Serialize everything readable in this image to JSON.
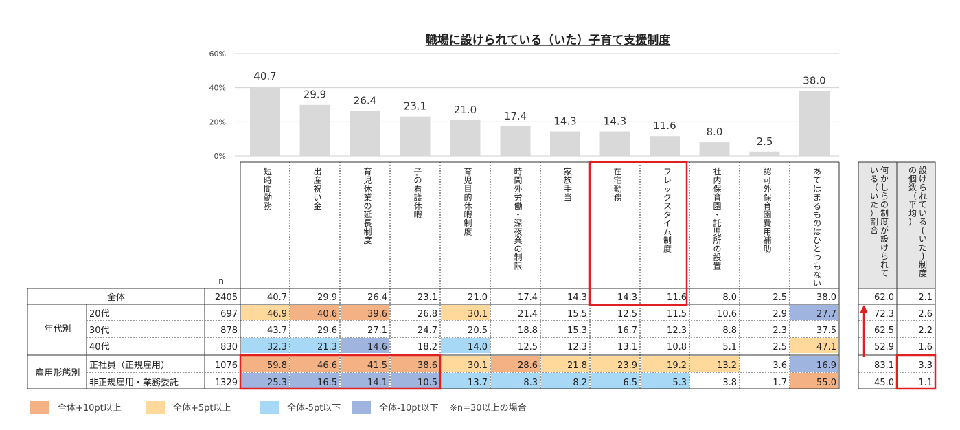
{
  "colors": {
    "bar": "#d9d9d9",
    "grid": "#d0d0d0",
    "hi10": "#f4b183",
    "hi5": "#ffd89b",
    "lo5": "#a7d8f5",
    "lo10": "#9fb4de",
    "frame": "#e02020",
    "sideHeader": "#e6e6e6"
  },
  "chart_data": {
    "type": "bar",
    "title": "職場に設けられている（いた）子育て支援制度",
    "yticks": [
      "60%",
      "40%",
      "20%",
      "0%"
    ],
    "ylim": [
      0,
      60
    ],
    "categories": [
      "短時間勤務",
      "出産祝い金",
      "育児休業の延長制度",
      "子の看護休暇",
      "育児目的休暇制度",
      "時間外労働・深夜業の制限",
      "家族手当",
      "在宅勤務",
      "フレックスタイム制度",
      "社内保育園・託児所の設置",
      "認可外保育園費用補助",
      "あてはまるものはひとつもない"
    ],
    "values": [
      40.7,
      29.9,
      26.4,
      23.1,
      21.0,
      17.4,
      14.3,
      14.3,
      11.6,
      8.0,
      2.5,
      38.0
    ],
    "value_labels": [
      "40.7",
      "29.9",
      "26.4",
      "23.1",
      "21.0",
      "17.4",
      "14.3",
      "14.3",
      "11.6",
      "8.0",
      "2.5",
      "38.0"
    ]
  },
  "table": {
    "n_label": "n",
    "side_headers": [
      "何かしらの制度が設けられている（いた）割合",
      "設けられている(いた)制度の個数（平均）"
    ],
    "groups": [
      "年代別",
      "雇用形態別"
    ],
    "rows": [
      {
        "label": "全体",
        "n": "2405",
        "values": [
          "40.7",
          "29.9",
          "26.4",
          "23.1",
          "21.0",
          "17.4",
          "14.3",
          "14.3",
          "11.6",
          "8.0",
          "2.5",
          "38.0"
        ],
        "shades": [
          "",
          "",
          "",
          "",
          "",
          "",
          "",
          "",
          "",
          "",
          "",
          ""
        ],
        "side": [
          "62.0",
          "2.1"
        ]
      },
      {
        "label": "20代",
        "n": "697",
        "values": [
          "46.9",
          "40.6",
          "39.6",
          "26.8",
          "30.1",
          "21.4",
          "15.5",
          "12.5",
          "11.5",
          "10.6",
          "2.9",
          "27.7"
        ],
        "shades": [
          "hi5",
          "hi10",
          "hi10",
          "",
          "hi5",
          "",
          "",
          "",
          "",
          "",
          "",
          "lo10"
        ],
        "side": [
          "72.3",
          "2.6"
        ]
      },
      {
        "label": "30代",
        "n": "878",
        "values": [
          "43.7",
          "29.6",
          "27.1",
          "24.7",
          "20.5",
          "18.8",
          "15.3",
          "16.7",
          "12.3",
          "8.8",
          "2.3",
          "37.5"
        ],
        "shades": [
          "",
          "",
          "",
          "",
          "",
          "",
          "",
          "",
          "",
          "",
          "",
          ""
        ],
        "side": [
          "62.5",
          "2.2"
        ]
      },
      {
        "label": "40代",
        "n": "830",
        "values": [
          "32.3",
          "21.3",
          "14.6",
          "18.2",
          "14.0",
          "12.5",
          "12.3",
          "13.1",
          "10.8",
          "5.1",
          "2.5",
          "47.1"
        ],
        "shades": [
          "lo5",
          "lo5",
          "lo10",
          "",
          "lo5",
          "",
          "",
          "",
          "",
          "",
          "",
          "hi5"
        ],
        "side": [
          "52.9",
          "1.6"
        ]
      },
      {
        "label": "正社員（正規雇用）",
        "n": "1076",
        "values": [
          "59.8",
          "46.6",
          "41.5",
          "38.6",
          "30.1",
          "28.6",
          "21.8",
          "23.9",
          "19.2",
          "13.2",
          "3.6",
          "16.9"
        ],
        "shades": [
          "hi10",
          "hi10",
          "hi10",
          "hi10",
          "hi5",
          "hi10",
          "hi5",
          "hi5",
          "hi5",
          "hi5",
          "",
          "lo10"
        ],
        "side": [
          "83.1",
          "3.3"
        ]
      },
      {
        "label": "非正規雇用・業務委託",
        "n": "1329",
        "values": [
          "25.3",
          "16.5",
          "14.1",
          "10.5",
          "13.7",
          "8.3",
          "8.2",
          "6.5",
          "5.3",
          "3.8",
          "1.7",
          "55.0"
        ],
        "shades": [
          "lo10",
          "lo10",
          "lo10",
          "lo10",
          "lo5",
          "lo5",
          "lo5",
          "lo5",
          "lo5",
          "",
          "",
          "hi10"
        ],
        "side": [
          "45.0",
          "1.1"
        ]
      }
    ]
  },
  "legend": [
    {
      "label": "全体+10pt以上",
      "color_key": "hi10"
    },
    {
      "label": "全体+5pt以上",
      "color_key": "hi5"
    },
    {
      "label": "全体-5pt以下",
      "color_key": "lo5"
    },
    {
      "label": "全体-10pt以下",
      "color_key": "lo10"
    }
  ],
  "note": "※n=30以上の場合"
}
